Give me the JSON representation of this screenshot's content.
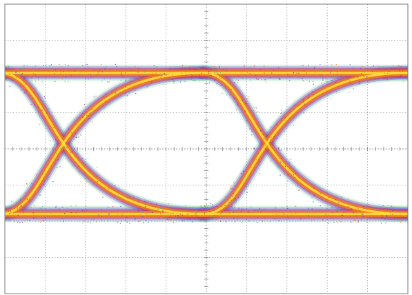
{
  "chart_data": {
    "type": "eye-diagram",
    "title": "",
    "xlabel": "",
    "ylabel": "",
    "grid": true,
    "divisions": {
      "x": 10,
      "y": 8
    },
    "xlim": [
      0,
      10
    ],
    "ylim": [
      -4,
      4
    ],
    "levels": {
      "high": 2.1,
      "low": -1.8
    },
    "crossings": [
      {
        "x": 2.4,
        "y": 0.2
      },
      {
        "x": 7.45,
        "y": 0.2
      }
    ],
    "colors": {
      "grid": "#9a9a9a",
      "trace_core": "#ffdc3c",
      "trace_mid": "#f07a1a",
      "trace_outer": "#c83a6a",
      "trace_halo": "#6a3fd0",
      "trace_fringe": "#3fbf6a"
    }
  }
}
